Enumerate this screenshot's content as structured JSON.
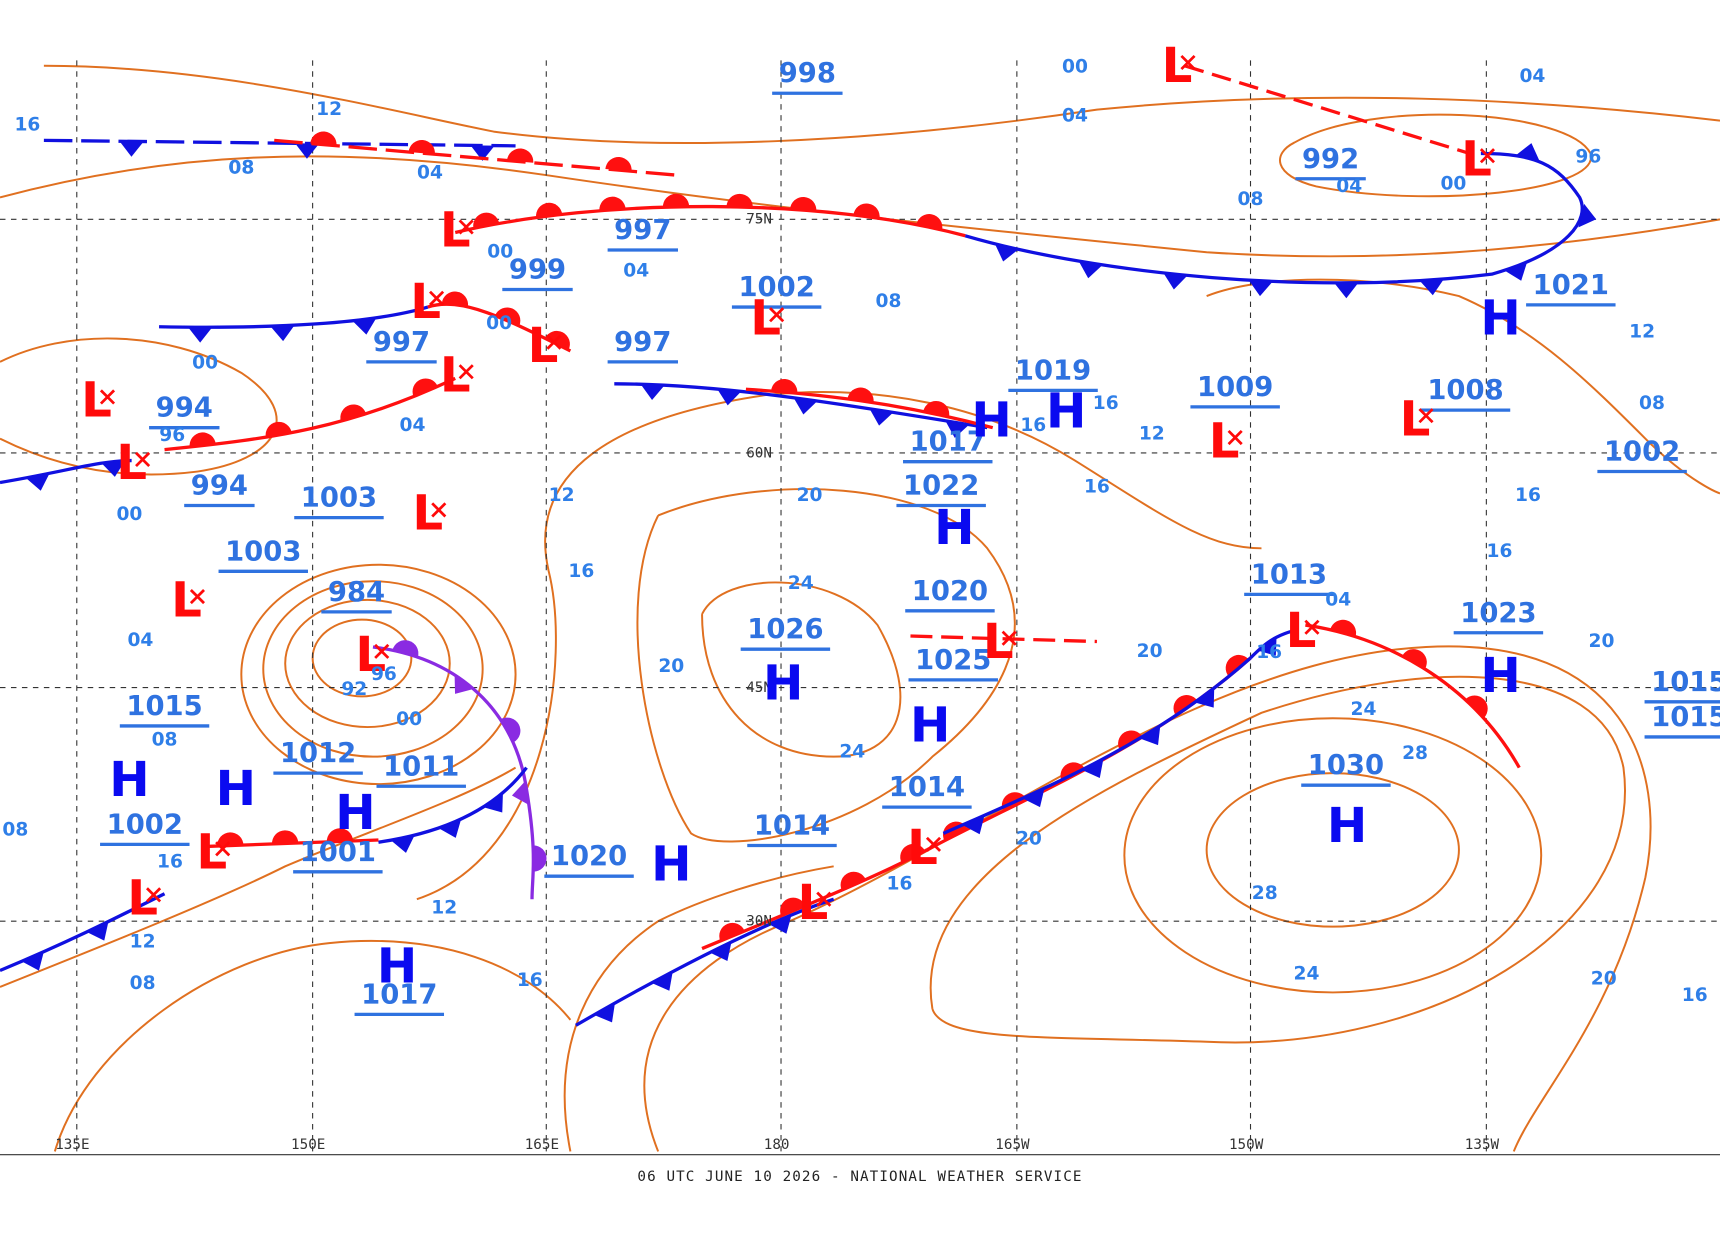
{
  "footer": "06 UTC JUNE 10 2026 - NATIONAL WEATHER SERVICE",
  "longitude_labels": [
    "135E",
    "150E",
    "165E",
    "180",
    "165W",
    "150W",
    "135W"
  ],
  "latitude_labels": [
    "75N",
    "60N",
    "45N",
    "30N"
  ],
  "pressure_centers": [
    "998",
    "992",
    "997",
    "999",
    "1002",
    "997",
    "997",
    "994",
    "994",
    "1003",
    "1003",
    "984",
    "1015",
    "1012",
    "1011",
    "1002",
    "1001",
    "1017",
    "1020",
    "1014",
    "1014",
    "1026",
    "1020",
    "1025",
    "1022",
    "1017",
    "1019",
    "1009",
    "1008",
    "1021",
    "1002",
    "1013",
    "1023",
    "1030",
    "1015",
    "1015"
  ],
  "highs": [
    "H",
    "H",
    "H",
    "H",
    "H",
    "H",
    "H",
    "H",
    "H",
    "H",
    "H",
    "H",
    "H"
  ],
  "lows": [
    "L",
    "L",
    "L",
    "L",
    "L",
    "L",
    "L",
    "L",
    "L",
    "L",
    "L",
    "L",
    "L",
    "L",
    "L",
    "L",
    "L",
    "L",
    "L",
    "L"
  ],
  "isobar_labels": [
    "16",
    "12",
    "08",
    "04",
    "00",
    "00",
    "04",
    "08",
    "04",
    "00",
    "96",
    "00",
    "08",
    "04",
    "08",
    "00",
    "96",
    "00",
    "04",
    "96",
    "92",
    "00",
    "04",
    "08",
    "12",
    "16",
    "20",
    "24",
    "20",
    "24",
    "16",
    "20",
    "20",
    "16",
    "24",
    "28",
    "28",
    "24",
    "20",
    "16",
    "16",
    "12",
    "16",
    "08",
    "04",
    "08",
    "12",
    "16",
    "16",
    "16",
    "12",
    "16",
    "20",
    "16",
    "12",
    "08",
    "04"
  ]
}
